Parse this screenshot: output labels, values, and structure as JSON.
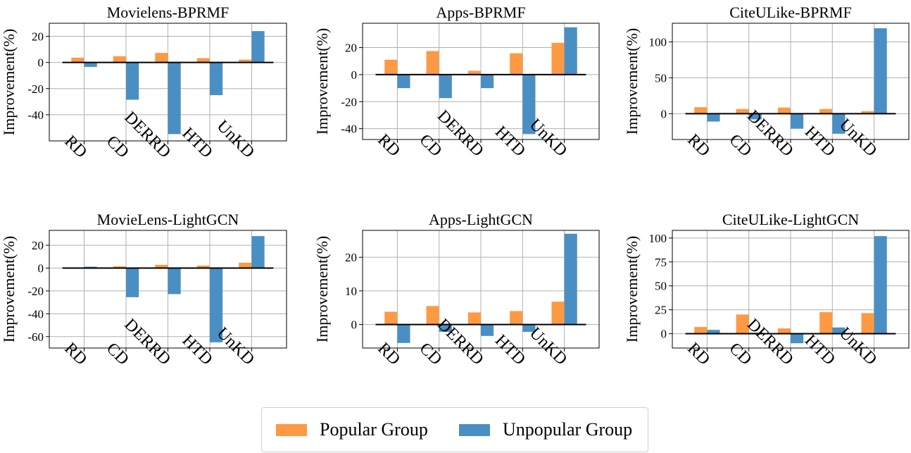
{
  "colors": {
    "popular": "#fd9a43",
    "unpopular": "#4a8fc4"
  },
  "legend": {
    "popular_label": "Popular Group",
    "unpopular_label": "Unpopular Group"
  },
  "chart_data": [
    {
      "type": "bar",
      "title": "Movielens-BPRMF",
      "ylabel": "Improvement(%)",
      "categories": [
        "RD",
        "CD",
        "DERRD",
        "HTD",
        "UnKD"
      ],
      "series": [
        {
          "name": "Popular Group",
          "values": [
            3.7,
            4.8,
            7.3,
            3.3,
            2.2
          ]
        },
        {
          "name": "Unpopular Group",
          "values": [
            -3.4,
            -28.5,
            -54.8,
            -25.0,
            24.0
          ]
        }
      ],
      "ylim": [
        -60,
        30
      ],
      "yticks": [
        20,
        0,
        -20,
        -40
      ],
      "grid": true
    },
    {
      "type": "bar",
      "title": "Apps-BPRMF",
      "ylabel": "Improvement(%)",
      "categories": [
        "RD",
        "CD",
        "DERRD",
        "HTD",
        "UnKD"
      ],
      "series": [
        {
          "name": "Popular Group",
          "values": [
            11.0,
            17.4,
            2.8,
            15.8,
            23.5
          ]
        },
        {
          "name": "Unpopular Group",
          "values": [
            -10.0,
            -17.4,
            -10.0,
            -44.0,
            35.0
          ]
        }
      ],
      "ylim": [
        -48,
        38
      ],
      "yticks": [
        20,
        0,
        -20,
        -40
      ],
      "grid": true
    },
    {
      "type": "bar",
      "title": "CiteULike-BPRMF",
      "ylabel": "Improvement(%)",
      "categories": [
        "RD",
        "CD",
        "DERRD",
        "HTD",
        "UnKD"
      ],
      "series": [
        {
          "name": "Popular Group",
          "values": [
            9.0,
            6.5,
            8.5,
            6.5,
            3.5
          ]
        },
        {
          "name": "Unpopular Group",
          "values": [
            -11.0,
            -8.0,
            -21.0,
            -28.0,
            119.0
          ]
        }
      ],
      "ylim": [
        -36,
        126
      ],
      "yticks": [
        100,
        50,
        0
      ],
      "grid": true
    },
    {
      "type": "bar",
      "title": "MovieLens-LightGCN",
      "ylabel": "Improvement(%)",
      "categories": [
        "RD",
        "CD",
        "DERRD",
        "HTD",
        "UnKD"
      ],
      "series": [
        {
          "name": "Popular Group",
          "values": [
            0.5,
            1.5,
            2.8,
            2.2,
            4.7
          ]
        },
        {
          "name": "Unpopular Group",
          "values": [
            1.2,
            -25.5,
            -22.8,
            -65.0,
            28.0
          ]
        }
      ],
      "ylim": [
        -70,
        33
      ],
      "yticks": [
        20,
        0,
        -20,
        -40,
        -60
      ],
      "grid": true
    },
    {
      "type": "bar",
      "title": "Apps-LightGCN",
      "ylabel": "Improvement(%)",
      "categories": [
        "RD",
        "CD",
        "DERRD",
        "HTD",
        "UnKD"
      ],
      "series": [
        {
          "name": "Popular Group",
          "values": [
            3.8,
            5.5,
            3.6,
            4.0,
            6.8
          ]
        },
        {
          "name": "Unpopular Group",
          "values": [
            -5.5,
            -2.2,
            -3.4,
            -2.2,
            27.0
          ]
        }
      ],
      "ylim": [
        -7,
        28
      ],
      "yticks": [
        20,
        10,
        0
      ],
      "grid": true
    },
    {
      "type": "bar",
      "title": "CiteULike-LightGCN",
      "ylabel": "Improvement(%)",
      "categories": [
        "RD",
        "CD",
        "DERRD",
        "HTD",
        "UnKD"
      ],
      "series": [
        {
          "name": "Popular Group",
          "values": [
            7.0,
            20.0,
            5.5,
            22.5,
            21.5
          ]
        },
        {
          "name": "Unpopular Group",
          "values": [
            4.0,
            1.0,
            -10.0,
            6.5,
            102.0
          ]
        }
      ],
      "ylim": [
        -15,
        108
      ],
      "yticks": [
        100,
        75,
        50,
        25,
        0
      ],
      "grid": true
    }
  ]
}
